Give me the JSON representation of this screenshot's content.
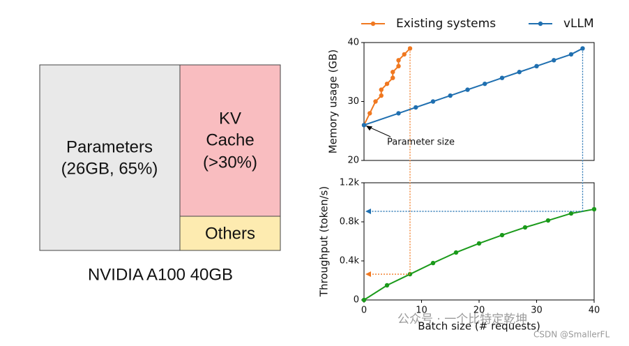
{
  "diagram": {
    "blocks": [
      {
        "lines": [
          "Parameters",
          "(26GB, 65%)"
        ]
      },
      {
        "lines": [
          "KV",
          "Cache",
          "(>30%)"
        ]
      },
      {
        "lines": [
          "Others"
        ]
      }
    ],
    "caption": "NVIDIA A100 40GB"
  },
  "chart_data": [
    {
      "type": "line",
      "ylabel": "Memory usage (GB)",
      "annotation": "Parameter size",
      "xlim": [
        0,
        40
      ],
      "ylim": [
        20,
        40
      ],
      "yticks": [
        20,
        30,
        40
      ],
      "legend": "top",
      "series": [
        {
          "name": "Existing systems",
          "color": "#f07820",
          "x": [
            0,
            1,
            2,
            3,
            3,
            4,
            5,
            5,
            6,
            6,
            7,
            8
          ],
          "values": [
            26,
            28,
            30,
            31,
            32,
            33,
            34,
            35,
            36,
            37,
            38,
            39
          ]
        },
        {
          "name": "vLLM",
          "color": "#1f6fb0",
          "x": [
            0,
            6,
            9,
            12,
            15,
            18,
            21,
            24,
            27,
            30,
            33,
            36,
            38
          ],
          "values": [
            26,
            28,
            29,
            30,
            31,
            32,
            33,
            34,
            35,
            36,
            37,
            38,
            39
          ]
        }
      ]
    },
    {
      "type": "line",
      "xlabel": "Batch size (# requests)",
      "ylabel": "Throughput (token/s)",
      "xlim": [
        0,
        40
      ],
      "xticks": [
        0,
        10,
        20,
        30,
        40
      ],
      "ylim": [
        0,
        1200
      ],
      "yticks": [
        0,
        {
          "value": 400,
          "label": "0.4k"
        },
        {
          "value": 800,
          "label": "0.8k"
        },
        {
          "value": 1200,
          "label": "1.2k"
        }
      ],
      "series": [
        {
          "color": "#1a9a1a",
          "x": [
            0,
            4,
            8,
            12,
            16,
            20,
            24,
            28,
            32,
            36,
            40
          ],
          "values": [
            0,
            150,
            264,
            378,
            486,
            579,
            664,
            743,
            814,
            886,
            929
          ]
        }
      ]
    }
  ],
  "watermark": [
    "公众号 · 一个比特定乾坤",
    "CSDN @SmallerFL"
  ]
}
